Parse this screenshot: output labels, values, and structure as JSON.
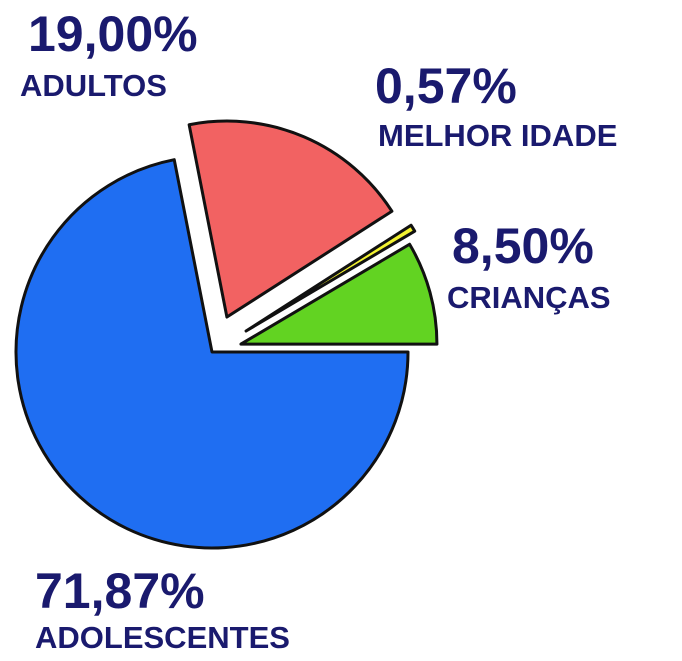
{
  "chart_data": {
    "type": "pie",
    "categories": [
      "ADOLESCENTES",
      "ADULTOS",
      "MELHOR IDADE",
      "CRIANÇAS"
    ],
    "values": [
      71.87,
      19.0,
      0.57,
      8.5
    ],
    "value_labels": [
      "71,87%",
      "19,00%",
      "0,57%",
      "8,50%"
    ],
    "colors": [
      "#1f6ef2",
      "#f26262",
      "#f2f232",
      "#62d322"
    ]
  }
}
